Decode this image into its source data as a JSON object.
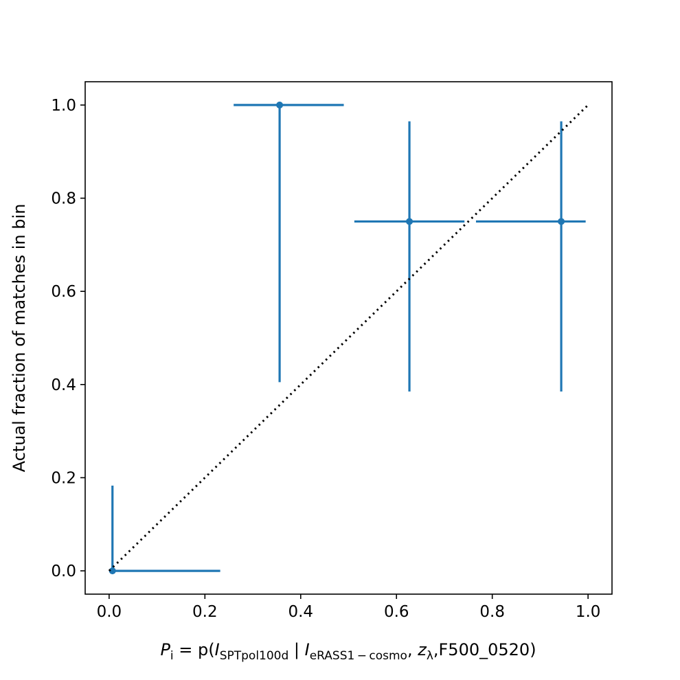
{
  "chart_data": {
    "type": "scatter",
    "title": "",
    "xlabel": {
      "main_italic": "P",
      "main_sub": "i",
      "eq": " = p(",
      "i1_italic": "I",
      "i1_sub": "SPTpol100d",
      "sep": " | ",
      "i2_italic": "I",
      "i2_sub": "eRASS1 − cosmo",
      "comma": ", ",
      "z_italic": "z",
      "z_sub": "λ",
      "tail": ",F500_0520)"
    },
    "ylabel": "Actual fraction of matches in bin",
    "xlim": [
      -0.05,
      1.05
    ],
    "ylim": [
      -0.05,
      1.05
    ],
    "x_ticks": [
      0.0,
      0.2,
      0.4,
      0.6,
      0.8,
      1.0
    ],
    "x_tick_labels": [
      "0.0",
      "0.2",
      "0.4",
      "0.6",
      "0.8",
      "1.0"
    ],
    "y_ticks": [
      0.0,
      0.2,
      0.4,
      0.6,
      0.8,
      1.0
    ],
    "y_tick_labels": [
      "0.0",
      "0.2",
      "0.4",
      "0.6",
      "0.8",
      "1.0"
    ],
    "grid": false,
    "series_color": "#1f77b4",
    "points": [
      {
        "x": 0.007,
        "y": 0.0,
        "xerr_lo": 0.007,
        "xerr_hi": 0.225,
        "yerr_lo": 0.0,
        "yerr_hi": 0.183
      },
      {
        "x": 0.356,
        "y": 1.0,
        "xerr_lo": 0.096,
        "xerr_hi": 0.134,
        "yerr_lo": 0.595,
        "yerr_hi": 0.0
      },
      {
        "x": 0.627,
        "y": 0.75,
        "xerr_lo": 0.115,
        "xerr_hi": 0.115,
        "yerr_lo": 0.365,
        "yerr_hi": 0.215
      },
      {
        "x": 0.944,
        "y": 0.75,
        "xerr_lo": 0.178,
        "xerr_hi": 0.051,
        "yerr_lo": 0.365,
        "yerr_hi": 0.215
      }
    ],
    "reference_line": {
      "x": [
        0.0,
        1.0
      ],
      "y": [
        0.0,
        1.0
      ],
      "style": "dotted",
      "color": "#000000"
    }
  }
}
